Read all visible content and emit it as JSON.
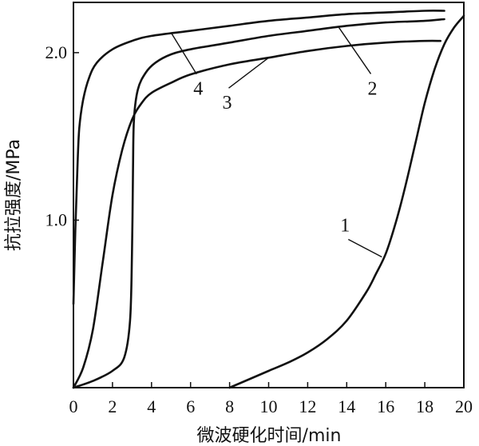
{
  "chart_data": {
    "type": "line",
    "title": "",
    "xlabel": "微波硬化时间/min",
    "ylabel": "抗拉强度/MPa",
    "xlim": [
      0,
      20
    ],
    "ylim": [
      0,
      2.3
    ],
    "x_ticks": [
      "0",
      "2",
      "4",
      "6",
      "8",
      "10",
      "12",
      "14",
      "16",
      "18",
      "20"
    ],
    "y_ticks": [
      "1.0",
      "2.0"
    ],
    "grid": false,
    "legend": "none",
    "series": [
      {
        "name": "1",
        "points": [
          [
            8.0,
            0.0
          ],
          [
            9.0,
            0.05
          ],
          [
            10.0,
            0.1
          ],
          [
            11.0,
            0.15
          ],
          [
            12.0,
            0.21
          ],
          [
            13.0,
            0.29
          ],
          [
            14.0,
            0.4
          ],
          [
            15.0,
            0.57
          ],
          [
            15.5,
            0.68
          ],
          [
            16.0,
            0.8
          ],
          [
            16.5,
            0.98
          ],
          [
            17.0,
            1.2
          ],
          [
            17.5,
            1.45
          ],
          [
            18.0,
            1.7
          ],
          [
            18.5,
            1.9
          ],
          [
            19.0,
            2.05
          ],
          [
            19.5,
            2.15
          ],
          [
            20.0,
            2.22
          ]
        ]
      },
      {
        "name": "2",
        "points": [
          [
            0.0,
            0.0
          ],
          [
            1.0,
            0.04
          ],
          [
            2.0,
            0.1
          ],
          [
            2.6,
            0.18
          ],
          [
            2.9,
            0.4
          ],
          [
            3.0,
            0.8
          ],
          [
            3.05,
            1.3
          ],
          [
            3.1,
            1.6
          ],
          [
            3.3,
            1.78
          ],
          [
            3.7,
            1.88
          ],
          [
            4.2,
            1.94
          ],
          [
            5.0,
            1.99
          ],
          [
            6.0,
            2.02
          ],
          [
            8.0,
            2.06
          ],
          [
            10.0,
            2.1
          ],
          [
            12.0,
            2.13
          ],
          [
            14.0,
            2.16
          ],
          [
            16.0,
            2.18
          ],
          [
            18.0,
            2.19
          ],
          [
            19.0,
            2.2
          ]
        ]
      },
      {
        "name": "3",
        "points": [
          [
            0.0,
            0.0
          ],
          [
            0.5,
            0.12
          ],
          [
            1.0,
            0.35
          ],
          [
            1.5,
            0.75
          ],
          [
            2.0,
            1.15
          ],
          [
            2.5,
            1.42
          ],
          [
            3.0,
            1.6
          ],
          [
            3.5,
            1.7
          ],
          [
            4.0,
            1.76
          ],
          [
            5.0,
            1.82
          ],
          [
            6.0,
            1.87
          ],
          [
            8.0,
            1.93
          ],
          [
            10.0,
            1.97
          ],
          [
            12.0,
            2.01
          ],
          [
            14.0,
            2.04
          ],
          [
            16.0,
            2.06
          ],
          [
            18.0,
            2.07
          ],
          [
            18.8,
            2.07
          ]
        ]
      },
      {
        "name": "4",
        "points": [
          [
            0.0,
            0.5
          ],
          [
            0.1,
            0.95
          ],
          [
            0.2,
            1.3
          ],
          [
            0.3,
            1.55
          ],
          [
            0.5,
            1.72
          ],
          [
            0.8,
            1.85
          ],
          [
            1.2,
            1.94
          ],
          [
            2.0,
            2.02
          ],
          [
            3.0,
            2.07
          ],
          [
            4.0,
            2.1
          ],
          [
            6.0,
            2.13
          ],
          [
            8.0,
            2.16
          ],
          [
            10.0,
            2.19
          ],
          [
            12.0,
            2.21
          ],
          [
            14.0,
            2.23
          ],
          [
            16.0,
            2.24
          ],
          [
            18.0,
            2.25
          ],
          [
            19.0,
            2.25
          ]
        ]
      }
    ],
    "annotations": [
      {
        "label": "1",
        "point_x": 15.8,
        "point_y": 0.78
      },
      {
        "label": "2",
        "point_x": 13.6,
        "point_y": 2.15
      },
      {
        "label": "3",
        "point_x": 10.0,
        "point_y": 1.97
      },
      {
        "label": "4",
        "point_x": 5.0,
        "point_y": 2.12
      }
    ]
  }
}
